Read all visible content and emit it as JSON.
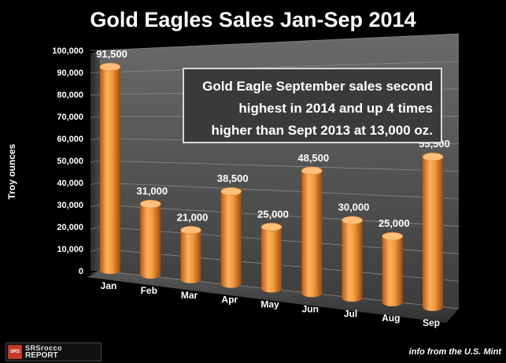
{
  "chart_data": {
    "type": "bar",
    "title": "Gold Eagles Sales Jan-Sep 2014",
    "ylabel": "Troy  ounces",
    "xlabel": "",
    "ylim": [
      0,
      100000
    ],
    "yticks": [
      "0",
      "10,000",
      "20,000",
      "30,000",
      "40,000",
      "50,000",
      "60,000",
      "70,000",
      "80,000",
      "90,000",
      "100,000"
    ],
    "categories": [
      "Jan",
      "Feb",
      "Mar",
      "Apr",
      "May",
      "Jun",
      "Jul",
      "Aug",
      "Sep"
    ],
    "values": [
      91500,
      31000,
      21000,
      38500,
      25000,
      48500,
      30000,
      25000,
      55500
    ],
    "data_labels": [
      "91,500",
      "31,000",
      "21,000",
      "38,500",
      "25,000",
      "48,500",
      "30,000",
      "25,000",
      "55,500"
    ],
    "bar_style": "3d-cylinder",
    "grid": true,
    "bar_color": "#f39a3c"
  },
  "annotation": {
    "lines": [
      "Gold Eagle September sales second",
      "highest in 2014 and up 4 times",
      "higher than Sept 2013 at 13,000 oz."
    ]
  },
  "logo": {
    "mark": "SRSrocco",
    "line1": "SRSrocco",
    "line2": "REPORT"
  },
  "source_note": "info from the U.S. Mint"
}
